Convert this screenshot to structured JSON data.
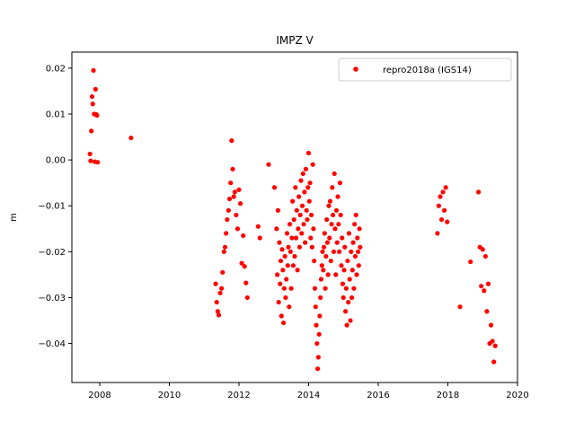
{
  "chart_data": {
    "type": "scatter",
    "title": "IMPZ V",
    "xlabel": "",
    "ylabel": "m",
    "xlim": [
      2007.2,
      2020.0
    ],
    "ylim": [
      -0.0485,
      0.0235
    ],
    "xticks": [
      2008,
      2010,
      2012,
      2014,
      2016,
      2018,
      2020
    ],
    "xtick_labels": [
      "2008",
      "2010",
      "2012",
      "2014",
      "2016",
      "2018",
      "2020"
    ],
    "yticks": [
      0.02,
      0.01,
      0.0,
      -0.01,
      -0.02,
      -0.03,
      -0.04
    ],
    "ytick_labels": [
      "0.02",
      "0.01",
      "0.00",
      "−0.01",
      "−0.02",
      "−0.03",
      "−0.04"
    ],
    "grid": false,
    "legend": {
      "placement": "top-right"
    },
    "series": [
      {
        "name": "repro2018a (IGS14)",
        "color": "#ff0000",
        "marker": "circle",
        "x": [
          2007.72,
          2007.74,
          2007.76,
          2007.78,
          2007.8,
          2007.82,
          2007.84,
          2007.86,
          2007.88,
          2007.9,
          2007.92,
          2007.94,
          2008.9,
          2011.33,
          2011.36,
          2011.39,
          2011.42,
          2011.46,
          2011.5,
          2011.53,
          2011.57,
          2011.6,
          2011.63,
          2011.66,
          2011.7,
          2011.73,
          2011.76,
          2011.79,
          2011.82,
          2011.85,
          2011.88,
          2011.92,
          2011.96,
          2012.0,
          2012.04,
          2012.08,
          2012.12,
          2012.16,
          2012.2,
          2012.24,
          2012.55,
          2012.6,
          2012.85,
          2013.02,
          2013.08,
          2013.1,
          2013.12,
          2013.14,
          2013.16,
          2013.18,
          2013.2,
          2013.22,
          2013.24,
          2013.26,
          2013.28,
          2013.3,
          2013.32,
          2013.34,
          2013.36,
          2013.38,
          2013.4,
          2013.42,
          2013.44,
          2013.46,
          2013.48,
          2013.5,
          2013.52,
          2013.54,
          2013.56,
          2013.58,
          2013.6,
          2013.62,
          2013.64,
          2013.66,
          2013.68,
          2013.7,
          2013.72,
          2013.74,
          2013.76,
          2013.78,
          2013.8,
          2013.82,
          2013.84,
          2013.86,
          2013.88,
          2013.9,
          2013.92,
          2013.94,
          2013.96,
          2013.98,
          2014.0,
          2014.02,
          2014.04,
          2014.06,
          2014.08,
          2014.1,
          2014.12,
          2014.14,
          2014.16,
          2014.18,
          2014.2,
          2014.22,
          2014.24,
          2014.26,
          2014.28,
          2014.3,
          2014.32,
          2014.34,
          2014.36,
          2014.38,
          2014.4,
          2014.42,
          2014.44,
          2014.46,
          2014.48,
          2014.5,
          2014.52,
          2014.54,
          2014.56,
          2014.58,
          2014.6,
          2014.62,
          2014.64,
          2014.66,
          2014.68,
          2014.7,
          2014.72,
          2014.74,
          2014.76,
          2014.78,
          2014.8,
          2014.82,
          2014.84,
          2014.86,
          2014.88,
          2014.9,
          2014.92,
          2014.94,
          2014.96,
          2014.98,
          2015.0,
          2015.02,
          2015.04,
          2015.06,
          2015.08,
          2015.1,
          2015.12,
          2015.14,
          2015.16,
          2015.18,
          2015.2,
          2015.22,
          2015.24,
          2015.26,
          2015.28,
          2015.3,
          2015.32,
          2015.34,
          2015.36,
          2015.38,
          2015.4,
          2015.42,
          2015.44,
          2015.46,
          2015.48,
          2017.7,
          2017.74,
          2017.78,
          2017.82,
          2017.86,
          2017.9,
          2017.94,
          2017.98,
          2018.35,
          2018.65,
          2018.88,
          2018.92,
          2018.96,
          2019.0,
          2019.04,
          2019.08,
          2019.12,
          2019.16,
          2019.2,
          2019.24,
          2019.28,
          2019.32,
          2019.36
        ],
        "y": [
          0.0013,
          -0.0002,
          0.0063,
          0.0138,
          0.0122,
          0.0195,
          0.01,
          -0.0004,
          0.0154,
          0.0099,
          0.0097,
          -0.0005,
          0.0048,
          -0.027,
          -0.031,
          -0.033,
          -0.0338,
          -0.029,
          -0.028,
          -0.0245,
          -0.02,
          -0.019,
          -0.016,
          -0.013,
          -0.011,
          -0.0085,
          -0.005,
          0.0042,
          -0.002,
          -0.008,
          -0.007,
          -0.012,
          -0.015,
          -0.0065,
          -0.0095,
          -0.0225,
          -0.0165,
          -0.0232,
          -0.0268,
          -0.03,
          -0.0145,
          -0.017,
          -0.001,
          -0.006,
          -0.015,
          -0.025,
          -0.011,
          -0.031,
          -0.018,
          -0.027,
          -0.022,
          -0.034,
          -0.0195,
          -0.024,
          -0.0355,
          -0.028,
          -0.021,
          -0.03,
          -0.026,
          -0.016,
          -0.023,
          -0.019,
          -0.032,
          -0.014,
          -0.02,
          -0.028,
          -0.017,
          -0.009,
          -0.023,
          -0.013,
          -0.021,
          -0.006,
          -0.017,
          -0.011,
          -0.024,
          -0.015,
          -0.008,
          -0.019,
          -0.012,
          -0.0045,
          -0.016,
          -0.01,
          -0.003,
          -0.014,
          -0.007,
          -0.018,
          -0.002,
          -0.011,
          -0.013,
          -0.006,
          0.0015,
          -0.009,
          -0.005,
          -0.017,
          -0.012,
          -0.019,
          -0.001,
          -0.015,
          -0.022,
          -0.028,
          -0.032,
          -0.036,
          -0.04,
          -0.0455,
          -0.043,
          -0.038,
          -0.034,
          -0.03,
          -0.026,
          -0.023,
          -0.02,
          -0.024,
          -0.019,
          -0.016,
          -0.028,
          -0.021,
          -0.013,
          -0.018,
          -0.025,
          -0.01,
          -0.017,
          -0.009,
          -0.022,
          -0.014,
          -0.006,
          -0.012,
          -0.02,
          -0.003,
          -0.015,
          -0.025,
          -0.011,
          -0.018,
          -0.008,
          -0.014,
          -0.02,
          -0.005,
          -0.012,
          -0.023,
          -0.017,
          -0.027,
          -0.03,
          -0.024,
          -0.019,
          -0.033,
          -0.028,
          -0.036,
          -0.022,
          -0.031,
          -0.016,
          -0.026,
          -0.035,
          -0.02,
          -0.03,
          -0.024,
          -0.018,
          -0.028,
          -0.014,
          -0.021,
          -0.012,
          -0.025,
          -0.017,
          -0.02,
          -0.023,
          -0.015,
          -0.019,
          -0.016,
          -0.01,
          -0.008,
          -0.013,
          -0.007,
          -0.011,
          -0.006,
          -0.0135,
          -0.032,
          -0.0222,
          -0.007,
          -0.019,
          -0.0275,
          -0.0195,
          -0.0285,
          -0.021,
          -0.033,
          -0.027,
          -0.04,
          -0.036,
          -0.0395,
          -0.044,
          -0.0405
        ]
      }
    ]
  }
}
